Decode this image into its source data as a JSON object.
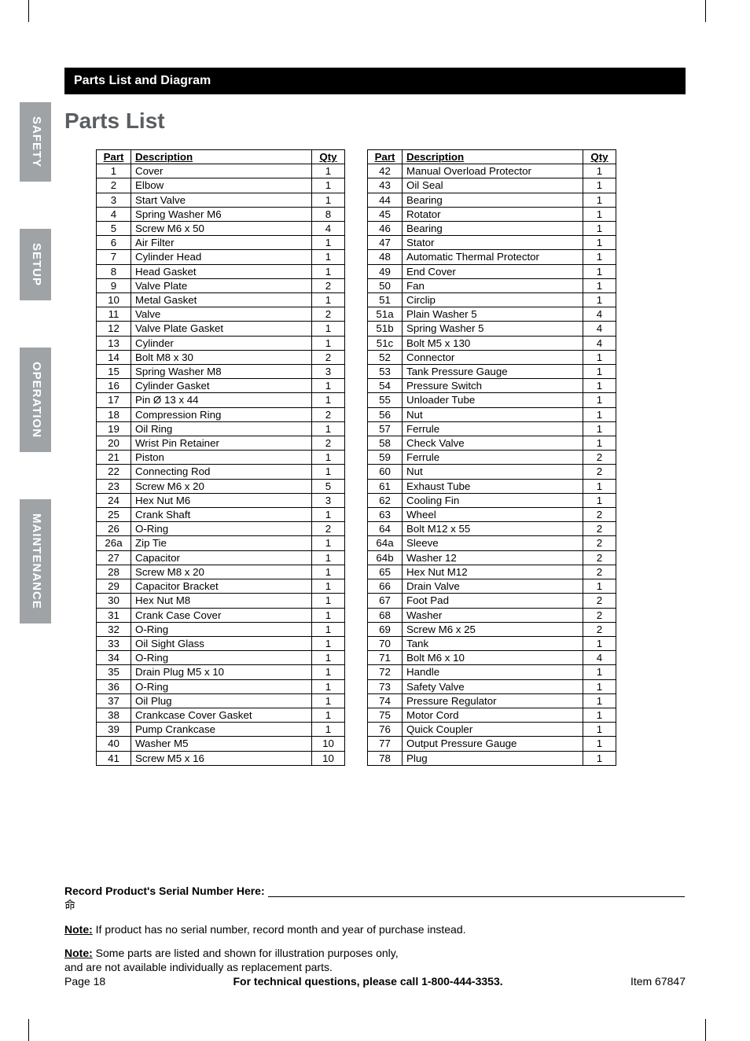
{
  "header_bar": "Parts List and Diagram",
  "page_title": "Parts List",
  "side_tabs": [
    "SAFETY",
    "SETUP",
    "OPERATION",
    "MAINTENANCE"
  ],
  "table_headers": {
    "part": "Part",
    "description": "Description",
    "qty": "Qty"
  },
  "table_left": {
    "rows": [
      {
        "p": "1",
        "d": "Cover",
        "q": "1"
      },
      {
        "p": "2",
        "d": "Elbow",
        "q": "1"
      },
      {
        "p": "3",
        "d": "Start Valve",
        "q": "1"
      },
      {
        "p": "4",
        "d": "Spring Washer M6",
        "q": "8"
      },
      {
        "p": "5",
        "d": "Screw M6 x 50",
        "q": "4"
      },
      {
        "p": "6",
        "d": "Air Filter",
        "q": "1"
      },
      {
        "p": "7",
        "d": "Cylinder Head",
        "q": "1"
      },
      {
        "p": "8",
        "d": "Head Gasket",
        "q": "1"
      },
      {
        "p": "9",
        "d": "Valve Plate",
        "q": "2"
      },
      {
        "p": "10",
        "d": "Metal Gasket",
        "q": "1"
      },
      {
        "p": "11",
        "d": "Valve",
        "q": "2"
      },
      {
        "p": "12",
        "d": "Valve Plate Gasket",
        "q": "1"
      },
      {
        "p": "13",
        "d": "Cylinder",
        "q": "1"
      },
      {
        "p": "14",
        "d": "Bolt M8 x 30",
        "q": "2"
      },
      {
        "p": "15",
        "d": "Spring Washer M8",
        "q": "3"
      },
      {
        "p": "16",
        "d": "Cylinder Gasket",
        "q": "1"
      },
      {
        "p": "17",
        "d": "Pin Ø 13 x 44",
        "q": "1"
      },
      {
        "p": "18",
        "d": "Compression Ring",
        "q": "2"
      },
      {
        "p": "19",
        "d": "Oil Ring",
        "q": "1"
      },
      {
        "p": "20",
        "d": "Wrist Pin Retainer",
        "q": "2"
      },
      {
        "p": "21",
        "d": "Piston",
        "q": "1"
      },
      {
        "p": "22",
        "d": "Connecting Rod",
        "q": "1"
      },
      {
        "p": "23",
        "d": "Screw M6 x 20",
        "q": "5"
      },
      {
        "p": "24",
        "d": "Hex Nut M6",
        "q": "3"
      },
      {
        "p": "25",
        "d": "Crank Shaft",
        "q": "1"
      },
      {
        "p": "26",
        "d": "O-Ring",
        "q": "2"
      },
      {
        "p": "26a",
        "d": "Zip Tie",
        "q": "1"
      },
      {
        "p": "27",
        "d": "Capacitor",
        "q": "1"
      },
      {
        "p": "28",
        "d": "Screw M8 x 20",
        "q": "1"
      },
      {
        "p": "29",
        "d": "Capacitor Bracket",
        "q": "1"
      },
      {
        "p": "30",
        "d": "Hex Nut M8",
        "q": "1"
      },
      {
        "p": "31",
        "d": "Crank Case Cover",
        "q": "1"
      },
      {
        "p": "32",
        "d": "O-Ring",
        "q": "1"
      },
      {
        "p": "33",
        "d": "Oil Sight Glass",
        "q": "1"
      },
      {
        "p": "34",
        "d": "O-Ring",
        "q": "1"
      },
      {
        "p": "35",
        "d": "Drain Plug M5 x 10",
        "q": "1"
      },
      {
        "p": "36",
        "d": "O-Ring",
        "q": "1"
      },
      {
        "p": "37",
        "d": "Oil Plug",
        "q": "1"
      },
      {
        "p": "38",
        "d": "Crankcase Cover Gasket",
        "q": "1"
      },
      {
        "p": "39",
        "d": "Pump Crankcase",
        "q": "1"
      },
      {
        "p": "40",
        "d": "Washer M5",
        "q": "10"
      },
      {
        "p": "41",
        "d": "Screw M5 x 16",
        "q": "10"
      }
    ]
  },
  "table_right": {
    "rows": [
      {
        "p": "42",
        "d": "Manual Overload Protector",
        "q": "1"
      },
      {
        "p": "43",
        "d": "Oil Seal",
        "q": "1"
      },
      {
        "p": "44",
        "d": "Bearing",
        "q": "1"
      },
      {
        "p": "45",
        "d": "Rotator",
        "q": "1"
      },
      {
        "p": "46",
        "d": "Bearing",
        "q": "1"
      },
      {
        "p": "47",
        "d": "Stator",
        "q": "1"
      },
      {
        "p": "48",
        "d": "Automatic Thermal Protector",
        "q": "1"
      },
      {
        "p": "49",
        "d": "End Cover",
        "q": "1"
      },
      {
        "p": "50",
        "d": "Fan",
        "q": "1"
      },
      {
        "p": "51",
        "d": "Circlip",
        "q": "1"
      },
      {
        "p": "51a",
        "d": "Plain Washer 5",
        "q": "4"
      },
      {
        "p": "51b",
        "d": "Spring Washer 5",
        "q": "4"
      },
      {
        "p": "51c",
        "d": "Bolt M5 x 130",
        "q": "4"
      },
      {
        "p": "52",
        "d": "Connector",
        "q": "1"
      },
      {
        "p": "53",
        "d": "Tank Pressure Gauge",
        "q": "1"
      },
      {
        "p": "54",
        "d": "Pressure Switch",
        "q": "1"
      },
      {
        "p": "55",
        "d": "Unloader Tube",
        "q": "1"
      },
      {
        "p": "56",
        "d": "Nut",
        "q": "1"
      },
      {
        "p": "57",
        "d": "Ferrule",
        "q": "1"
      },
      {
        "p": "58",
        "d": "Check Valve",
        "q": "1"
      },
      {
        "p": "59",
        "d": "Ferrule",
        "q": "2"
      },
      {
        "p": "60",
        "d": "Nut",
        "q": "2"
      },
      {
        "p": "61",
        "d": "Exhaust Tube",
        "q": "1"
      },
      {
        "p": "62",
        "d": "Cooling Fin",
        "q": "1"
      },
      {
        "p": "63",
        "d": "Wheel",
        "q": "2"
      },
      {
        "p": "64",
        "d": "Bolt M12 x 55",
        "q": "2"
      },
      {
        "p": "64a",
        "d": "Sleeve",
        "q": "2"
      },
      {
        "p": "64b",
        "d": "Washer 12",
        "q": "2"
      },
      {
        "p": "65",
        "d": "Hex Nut M12",
        "q": "2"
      },
      {
        "p": "66",
        "d": "Drain Valve",
        "q": "1"
      },
      {
        "p": "67",
        "d": "Foot Pad",
        "q": "2"
      },
      {
        "p": "68",
        "d": "Washer",
        "q": "2"
      },
      {
        "p": "69",
        "d": "Screw M6 x 25",
        "q": "2"
      },
      {
        "p": "70",
        "d": "Tank",
        "q": "1"
      },
      {
        "p": "71",
        "d": "Bolt M6 x 10",
        "q": "4"
      },
      {
        "p": "72",
        "d": "Handle",
        "q": "1"
      },
      {
        "p": "73",
        "d": "Safety Valve",
        "q": "1"
      },
      {
        "p": "74",
        "d": "Pressure Regulator",
        "q": "1"
      },
      {
        "p": "75",
        "d": "Motor Cord",
        "q": "1"
      },
      {
        "p": "76",
        "d": "Quick Coupler",
        "q": "1"
      },
      {
        "p": "77",
        "d": "Output Pressure Gauge",
        "q": "1"
      },
      {
        "p": "78",
        "d": "Plug",
        "q": "1"
      }
    ]
  },
  "serial": {
    "label": "Record Product's Serial Number Here:",
    "note1_prefix": "Note:",
    "note1_text": " If product has no serial number, record month and year of purchase instead.",
    "note2_prefix": "Note:",
    "note2_text_a": " Some parts are listed and shown for illustration purposes only,",
    "note2_text_b": "and are not available individually as replacement parts."
  },
  "footer": {
    "page": "Page 18",
    "center": "For technical questions, please call 1-800-444-3353.",
    "item": "Item 67847"
  }
}
